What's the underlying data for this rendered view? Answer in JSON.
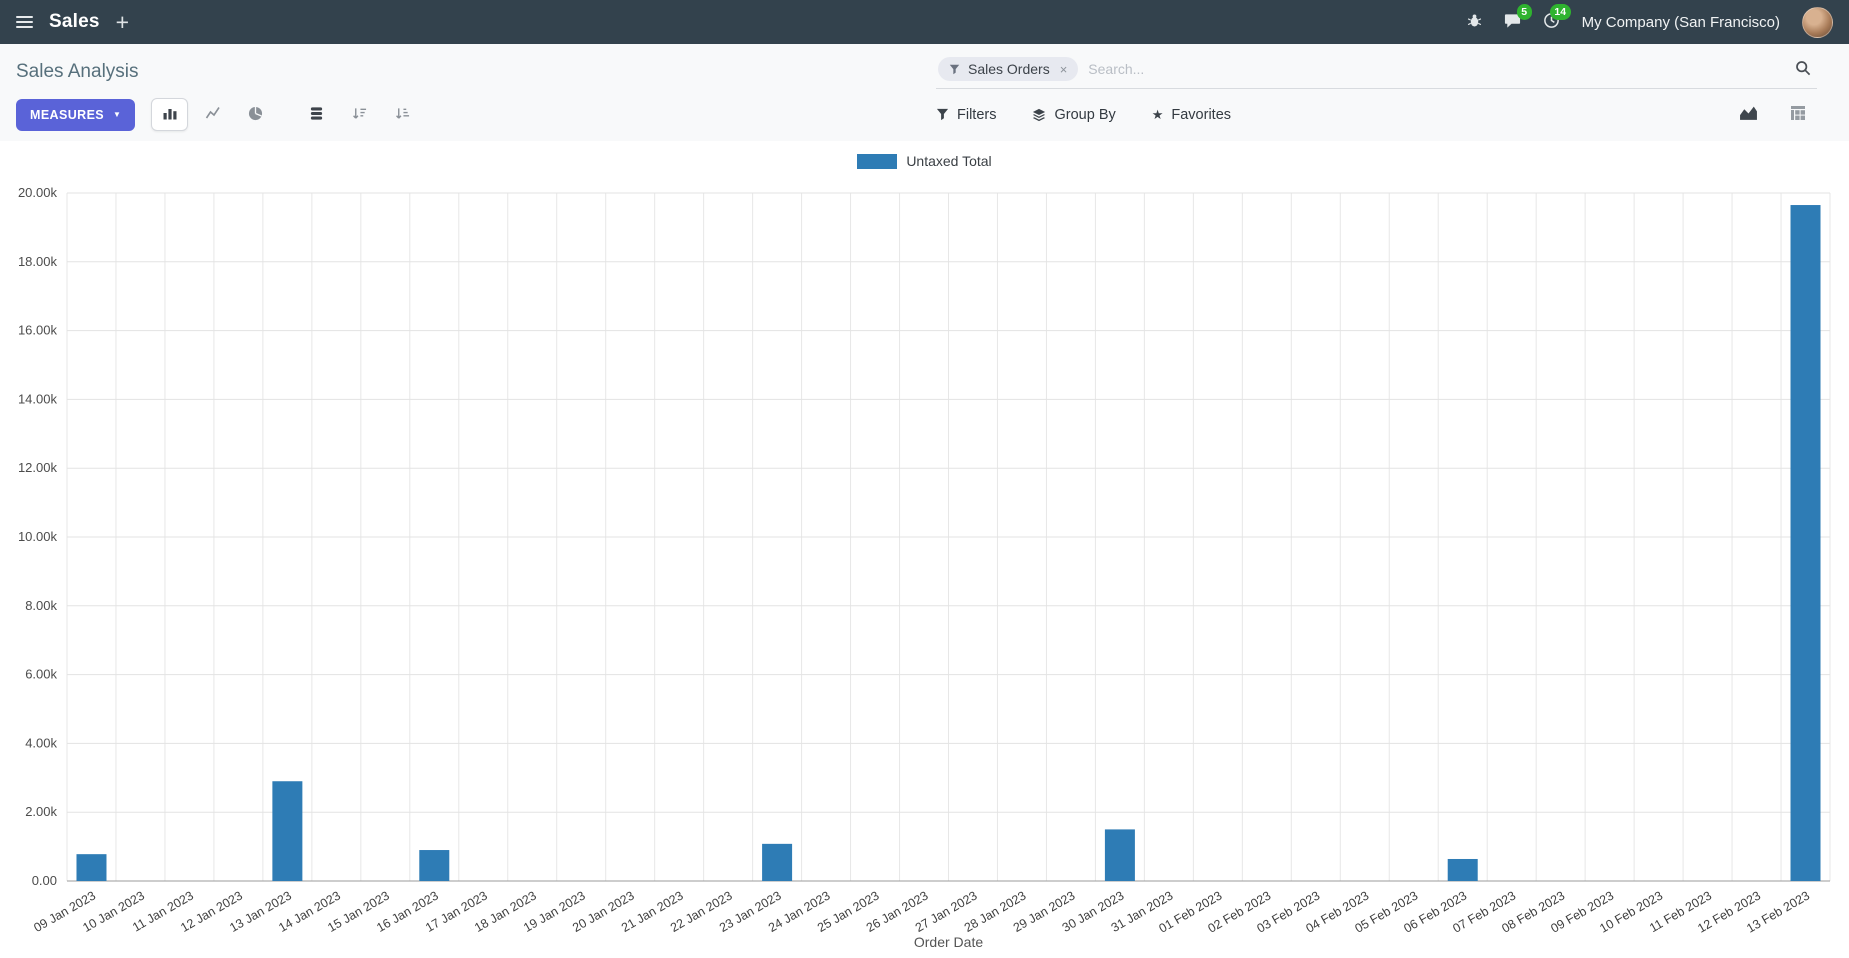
{
  "navbar": {
    "app_name": "Sales",
    "company": "My Company (San Francisco)",
    "messages_badge": "5",
    "activities_badge": "14"
  },
  "control_panel": {
    "title": "Sales Analysis",
    "measures_button": "MEASURES",
    "search": {
      "facet": "Sales Orders",
      "placeholder": "Search..."
    },
    "filters": "Filters",
    "group_by": "Group By",
    "favorites": "Favorites"
  },
  "icons": {
    "plus": "+",
    "caret_down": "▼",
    "close": "×",
    "star": "★"
  },
  "colors": {
    "navbar_bg": "#33424d",
    "primary_button": "#5a63d8",
    "badge_green": "#2fb32f",
    "bar_series": "#2e7cb5"
  },
  "chart_data": {
    "type": "bar",
    "title": "",
    "xlabel": "Order Date",
    "ylabel": "",
    "legend_position": "top-center",
    "grid": true,
    "x_tick_rotation": -30,
    "ylim": [
      0,
      20000
    ],
    "ytick_step": 2000,
    "yticks": [
      "0.00",
      "2.00k",
      "4.00k",
      "6.00k",
      "8.00k",
      "10.00k",
      "12.00k",
      "14.00k",
      "16.00k",
      "18.00k",
      "20.00k"
    ],
    "categories": [
      "09 Jan 2023",
      "10 Jan 2023",
      "11 Jan 2023",
      "12 Jan 2023",
      "13 Jan 2023",
      "14 Jan 2023",
      "15 Jan 2023",
      "16 Jan 2023",
      "17 Jan 2023",
      "18 Jan 2023",
      "19 Jan 2023",
      "20 Jan 2023",
      "21 Jan 2023",
      "22 Jan 2023",
      "23 Jan 2023",
      "24 Jan 2023",
      "25 Jan 2023",
      "26 Jan 2023",
      "27 Jan 2023",
      "28 Jan 2023",
      "29 Jan 2023",
      "30 Jan 2023",
      "31 Jan 2023",
      "01 Feb 2023",
      "02 Feb 2023",
      "03 Feb 2023",
      "04 Feb 2023",
      "05 Feb 2023",
      "06 Feb 2023",
      "07 Feb 2023",
      "08 Feb 2023",
      "09 Feb 2023",
      "10 Feb 2023",
      "11 Feb 2023",
      "12 Feb 2023",
      "13 Feb 2023"
    ],
    "series": [
      {
        "name": "Untaxed Total",
        "color": "#2e7cb5",
        "values": [
          780,
          0,
          0,
          0,
          2900,
          0,
          0,
          900,
          0,
          0,
          0,
          0,
          0,
          0,
          1080,
          0,
          0,
          0,
          0,
          0,
          0,
          1500,
          0,
          0,
          0,
          0,
          0,
          0,
          640,
          0,
          0,
          0,
          0,
          0,
          0,
          19650
        ]
      }
    ]
  }
}
